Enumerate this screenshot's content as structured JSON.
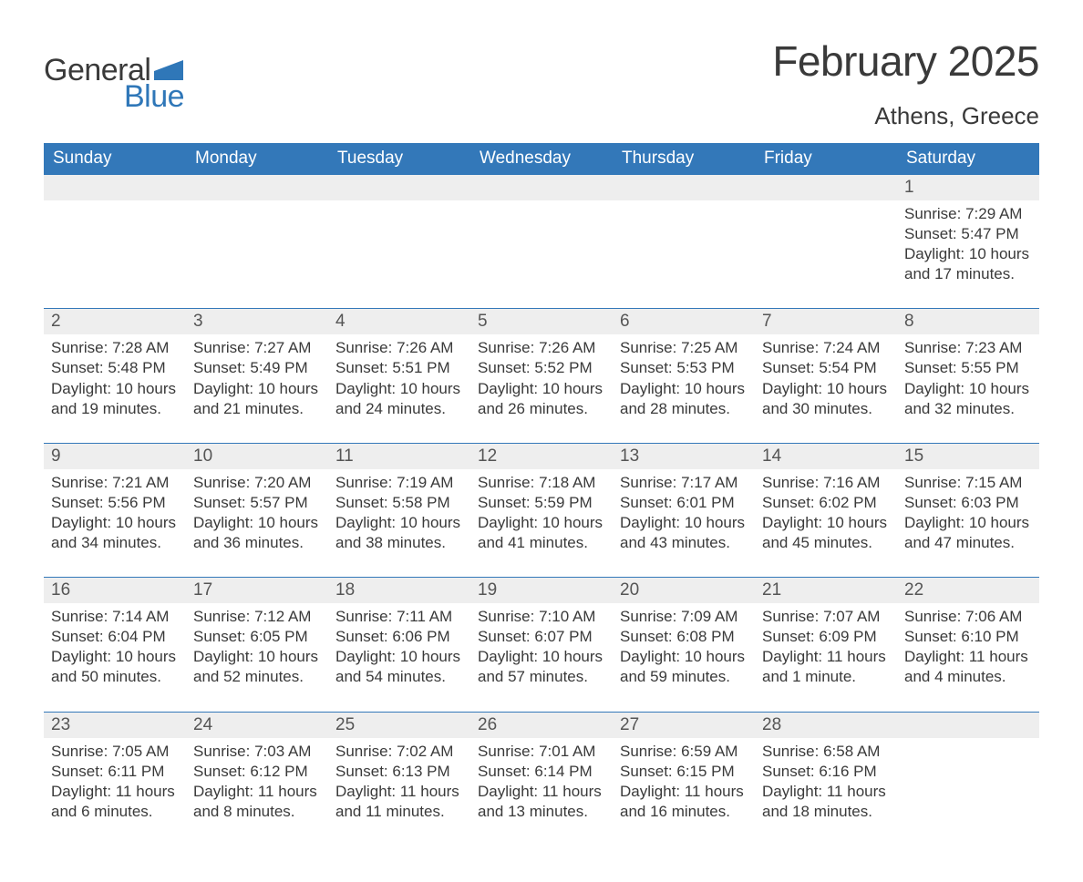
{
  "logo": {
    "text_general": "General",
    "text_blue": "Blue",
    "flag_color": "#2f77b8"
  },
  "title": {
    "month_year": "February 2025",
    "location": "Athens, Greece"
  },
  "colors": {
    "header_bg": "#3378b9",
    "header_text": "#ffffff",
    "daynum_bg": "#eeeeee",
    "daynum_border": "#3378b9",
    "body_text": "#3a3a3a",
    "page_bg": "#ffffff"
  },
  "calendar": {
    "day_headers": [
      "Sunday",
      "Monday",
      "Tuesday",
      "Wednesday",
      "Thursday",
      "Friday",
      "Saturday"
    ],
    "weeks": [
      [
        null,
        null,
        null,
        null,
        null,
        null,
        {
          "num": "1",
          "sunrise": "Sunrise: 7:29 AM",
          "sunset": "Sunset: 5:47 PM",
          "daylight": "Daylight: 10 hours and 17 minutes."
        }
      ],
      [
        {
          "num": "2",
          "sunrise": "Sunrise: 7:28 AM",
          "sunset": "Sunset: 5:48 PM",
          "daylight": "Daylight: 10 hours and 19 minutes."
        },
        {
          "num": "3",
          "sunrise": "Sunrise: 7:27 AM",
          "sunset": "Sunset: 5:49 PM",
          "daylight": "Daylight: 10 hours and 21 minutes."
        },
        {
          "num": "4",
          "sunrise": "Sunrise: 7:26 AM",
          "sunset": "Sunset: 5:51 PM",
          "daylight": "Daylight: 10 hours and 24 minutes."
        },
        {
          "num": "5",
          "sunrise": "Sunrise: 7:26 AM",
          "sunset": "Sunset: 5:52 PM",
          "daylight": "Daylight: 10 hours and 26 minutes."
        },
        {
          "num": "6",
          "sunrise": "Sunrise: 7:25 AM",
          "sunset": "Sunset: 5:53 PM",
          "daylight": "Daylight: 10 hours and 28 minutes."
        },
        {
          "num": "7",
          "sunrise": "Sunrise: 7:24 AM",
          "sunset": "Sunset: 5:54 PM",
          "daylight": "Daylight: 10 hours and 30 minutes."
        },
        {
          "num": "8",
          "sunrise": "Sunrise: 7:23 AM",
          "sunset": "Sunset: 5:55 PM",
          "daylight": "Daylight: 10 hours and 32 minutes."
        }
      ],
      [
        {
          "num": "9",
          "sunrise": "Sunrise: 7:21 AM",
          "sunset": "Sunset: 5:56 PM",
          "daylight": "Daylight: 10 hours and 34 minutes."
        },
        {
          "num": "10",
          "sunrise": "Sunrise: 7:20 AM",
          "sunset": "Sunset: 5:57 PM",
          "daylight": "Daylight: 10 hours and 36 minutes."
        },
        {
          "num": "11",
          "sunrise": "Sunrise: 7:19 AM",
          "sunset": "Sunset: 5:58 PM",
          "daylight": "Daylight: 10 hours and 38 minutes."
        },
        {
          "num": "12",
          "sunrise": "Sunrise: 7:18 AM",
          "sunset": "Sunset: 5:59 PM",
          "daylight": "Daylight: 10 hours and 41 minutes."
        },
        {
          "num": "13",
          "sunrise": "Sunrise: 7:17 AM",
          "sunset": "Sunset: 6:01 PM",
          "daylight": "Daylight: 10 hours and 43 minutes."
        },
        {
          "num": "14",
          "sunrise": "Sunrise: 7:16 AM",
          "sunset": "Sunset: 6:02 PM",
          "daylight": "Daylight: 10 hours and 45 minutes."
        },
        {
          "num": "15",
          "sunrise": "Sunrise: 7:15 AM",
          "sunset": "Sunset: 6:03 PM",
          "daylight": "Daylight: 10 hours and 47 minutes."
        }
      ],
      [
        {
          "num": "16",
          "sunrise": "Sunrise: 7:14 AM",
          "sunset": "Sunset: 6:04 PM",
          "daylight": "Daylight: 10 hours and 50 minutes."
        },
        {
          "num": "17",
          "sunrise": "Sunrise: 7:12 AM",
          "sunset": "Sunset: 6:05 PM",
          "daylight": "Daylight: 10 hours and 52 minutes."
        },
        {
          "num": "18",
          "sunrise": "Sunrise: 7:11 AM",
          "sunset": "Sunset: 6:06 PM",
          "daylight": "Daylight: 10 hours and 54 minutes."
        },
        {
          "num": "19",
          "sunrise": "Sunrise: 7:10 AM",
          "sunset": "Sunset: 6:07 PM",
          "daylight": "Daylight: 10 hours and 57 minutes."
        },
        {
          "num": "20",
          "sunrise": "Sunrise: 7:09 AM",
          "sunset": "Sunset: 6:08 PM",
          "daylight": "Daylight: 10 hours and 59 minutes."
        },
        {
          "num": "21",
          "sunrise": "Sunrise: 7:07 AM",
          "sunset": "Sunset: 6:09 PM",
          "daylight": "Daylight: 11 hours and 1 minute."
        },
        {
          "num": "22",
          "sunrise": "Sunrise: 7:06 AM",
          "sunset": "Sunset: 6:10 PM",
          "daylight": "Daylight: 11 hours and 4 minutes."
        }
      ],
      [
        {
          "num": "23",
          "sunrise": "Sunrise: 7:05 AM",
          "sunset": "Sunset: 6:11 PM",
          "daylight": "Daylight: 11 hours and 6 minutes."
        },
        {
          "num": "24",
          "sunrise": "Sunrise: 7:03 AM",
          "sunset": "Sunset: 6:12 PM",
          "daylight": "Daylight: 11 hours and 8 minutes."
        },
        {
          "num": "25",
          "sunrise": "Sunrise: 7:02 AM",
          "sunset": "Sunset: 6:13 PM",
          "daylight": "Daylight: 11 hours and 11 minutes."
        },
        {
          "num": "26",
          "sunrise": "Sunrise: 7:01 AM",
          "sunset": "Sunset: 6:14 PM",
          "daylight": "Daylight: 11 hours and 13 minutes."
        },
        {
          "num": "27",
          "sunrise": "Sunrise: 6:59 AM",
          "sunset": "Sunset: 6:15 PM",
          "daylight": "Daylight: 11 hours and 16 minutes."
        },
        {
          "num": "28",
          "sunrise": "Sunrise: 6:58 AM",
          "sunset": "Sunset: 6:16 PM",
          "daylight": "Daylight: 11 hours and 18 minutes."
        },
        null
      ]
    ]
  }
}
